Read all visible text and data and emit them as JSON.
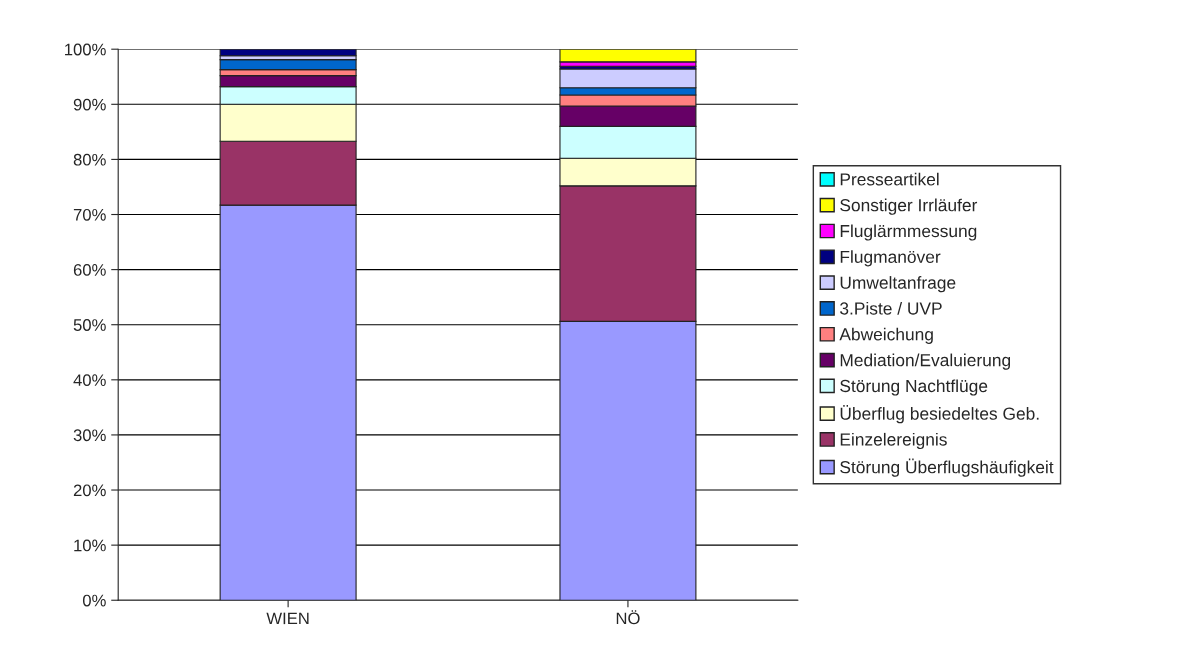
{
  "chart_data": {
    "type": "bar",
    "stacked": true,
    "categories": [
      "WIEN",
      "NÖ"
    ],
    "series": [
      {
        "name": "Störung Überflugshäufigkeit",
        "color": "#9999ff",
        "values": [
          71.7,
          50.6
        ]
      },
      {
        "name": "Einzelereignis",
        "color": "#993366",
        "values": [
          11.6,
          24.6
        ]
      },
      {
        "name": "Überflug besiedeltes Geb.",
        "color": "#ffffcc",
        "values": [
          6.7,
          5.0
        ]
      },
      {
        "name": "Störung Nachtflüge",
        "color": "#ccffff",
        "values": [
          3.2,
          5.8
        ]
      },
      {
        "name": "Mediation/Evaluierung",
        "color": "#660066",
        "values": [
          2.0,
          3.7
        ]
      },
      {
        "name": "Abweichung",
        "color": "#ff8080",
        "values": [
          1.1,
          2.0
        ]
      },
      {
        "name": "3.Piste / UVP",
        "color": "#0066cc",
        "values": [
          1.8,
          1.3
        ]
      },
      {
        "name": "Umweltanfrage",
        "color": "#ccccff",
        "values": [
          0.7,
          3.4
        ]
      },
      {
        "name": "Flugmanöver",
        "color": "#000080",
        "values": [
          1.2,
          0.5
        ]
      },
      {
        "name": "Fluglärmmessung",
        "color": "#ff00ff",
        "values": [
          0,
          0.8
        ]
      },
      {
        "name": "Sonstiger Irrläufer",
        "color": "#ffff00",
        "values": [
          0,
          2.3
        ]
      },
      {
        "name": "Presseartikel",
        "color": "#00ffff",
        "values": [
          0,
          0
        ]
      }
    ],
    "ylim": [
      0,
      100
    ],
    "yticks": [
      {
        "value": 0,
        "label": "0%"
      },
      {
        "value": 10,
        "label": "10%"
      },
      {
        "value": 20,
        "label": "20%"
      },
      {
        "value": 30,
        "label": "30%"
      },
      {
        "value": 40,
        "label": "40%"
      },
      {
        "value": 50,
        "label": "50%"
      },
      {
        "value": 60,
        "label": "60%"
      },
      {
        "value": 70,
        "label": "70%"
      },
      {
        "value": 80,
        "label": "80%"
      },
      {
        "value": 90,
        "label": "90%"
      },
      {
        "value": 100,
        "label": "100%"
      }
    ],
    "grid": "y",
    "legend": "right"
  }
}
